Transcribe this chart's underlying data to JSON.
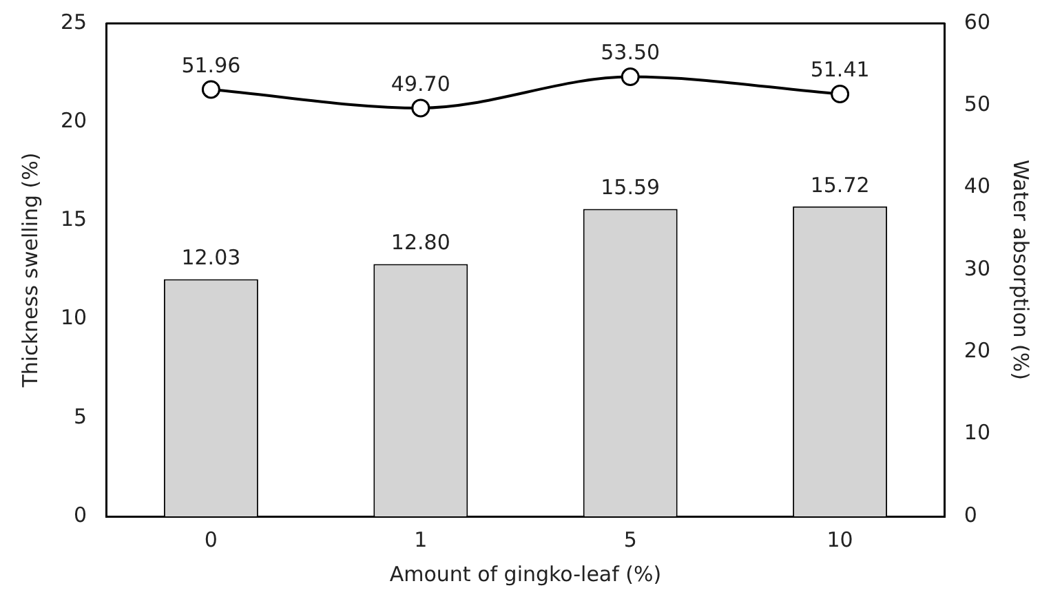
{
  "chart_data": {
    "type": "bar",
    "xlabel": "Amount of gingko-leaf (%)",
    "ylabel": "Thickness swelling (%)",
    "y2label": "Water absorption (%)",
    "categories": [
      "0",
      "1",
      "5",
      "10"
    ],
    "series": [
      {
        "color": "#d4d4d4",
        "values": [
          12.03,
          12.8,
          15.59,
          15.72
        ],
        "value_labels": [
          "12.03",
          "12.80",
          "15.59",
          "15.72"
        ]
      },
      {
        "type": "line",
        "axis": "y2",
        "color": "#000000",
        "marker": "circle",
        "values": [
          51.96,
          49.7,
          53.5,
          51.41
        ],
        "value_labels": [
          "51.96",
          "49.70",
          "53.50",
          "51.41"
        ]
      }
    ],
    "ylim": [
      0,
      25
    ],
    "yticks": [
      0,
      5,
      10,
      15,
      20,
      25
    ],
    "y2lim": [
      0,
      60
    ],
    "y2ticks": [
      0,
      10,
      20,
      30,
      40,
      50,
      60
    ],
    "grid": false,
    "legend": false
  }
}
